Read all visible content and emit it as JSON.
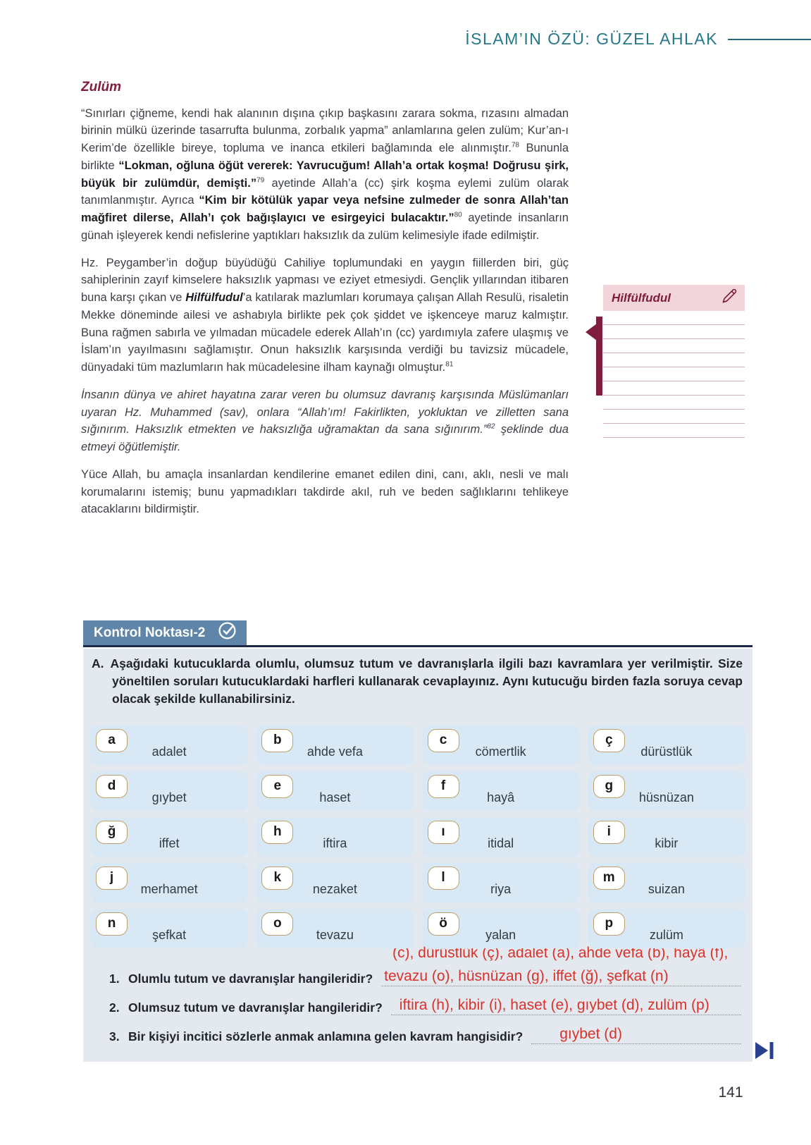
{
  "page": {
    "header_title": "İSLAM’IN ÖZÜ: GÜZEL AHLAK",
    "page_number": "141"
  },
  "colors": {
    "teal_accent": "#26778A",
    "maroon_accent": "#7E1D3D",
    "badge_blue": "#5F86A9",
    "panel_gray": "#E4E8EF",
    "cell_blue": "#D8E9F5",
    "letter_border_gold": "#BFA06A",
    "answer_red": "#DA322A",
    "navy_rule": "#1C2B49"
  },
  "article": {
    "section_title": "Zulüm",
    "paragraphs": [
      {
        "segments": [
          {
            "text": "“Sınırları çiğneme, kendi hak alanının dışına çıkıp başkasını zarara sokma, rızasını almadan birinin mülkü üzerinde tasarrufta bulunma, zorbalık yapma” anlamlarına gelen zulüm; Kur’an-ı Kerim’de özellikle bireye, topluma ve inanca etkileri bağlamında ele alınmıştır."
          },
          {
            "text": "78",
            "sup": true
          },
          {
            "text": " Bununla birlikte "
          },
          {
            "text": "“Lokman, oğluna öğüt vererek: Yavrucuğum! Allah’a ortak koşma! Doğrusu şirk, büyük bir zulümdür, demişti.”",
            "b": true
          },
          {
            "text": "79",
            "sup": true
          },
          {
            "text": " ayetinde Allah’a (cc) şirk koşma eylemi zulüm olarak tanımlanmıştır. Ayrıca "
          },
          {
            "text": "“Kim bir kötülük yapar veya nefsine zulmeder de sonra Allah’tan mağfiret dilerse, Allah’ı çok bağışlayıcı ve esirgeyici bulacaktır.”",
            "b": true
          },
          {
            "text": "80",
            "sup": true
          },
          {
            "text": " ayetinde insanların günah işleyerek kendi nefislerine yaptıkları haksızlık da zulüm kelimesiyle ifade edilmiştir."
          }
        ]
      },
      {
        "segments": [
          {
            "text": "Hz. Peygamber’in doğup büyüdüğü Cahiliye toplumundaki en yaygın fiillerden biri, güç sahiplerinin zayıf kimselere haksızlık yapması ve eziyet etmesiydi. Gençlik yıllarından itibaren buna karşı çıkan ve "
          },
          {
            "text": "Hilfülfudul",
            "b": true,
            "i": true
          },
          {
            "text": "’a katılarak mazlumları korumaya çalışan Allah Resulü, risaletin Mekke döneminde ailesi ve ashabıyla birlikte pek çok şiddet ve işkenceye maruz kalmıştır. Buna rağmen sabırla ve yılmadan mücadele ederek Allah’ın (cc) yardımıyla zafere ulaşmış ve İslam’ın yayılmasını sağlamıştır. Onun haksızlık karşısında verdiği bu tavizsiz mücadele, dünyadaki tüm mazlumların hak mücadelesine ilham kaynağı olmuştur."
          },
          {
            "text": "81",
            "sup": true
          }
        ]
      },
      {
        "segments": [
          {
            "text": "İnsanın dünya ve ahiret hayatına zarar veren bu olumsuz davranış karşısında Müslümanları uyaran Hz. Muhammed (sav), onlara “Allah’ım! Fakirlikten, yokluktan ve zilletten sana sığınırım. Haksızlık etmekten ve haksızlığa uğramaktan da sana sığınırım.”",
            "i": true
          },
          {
            "text": "82",
            "sup": true,
            "i": true
          },
          {
            "text": " şeklinde dua etmeyi öğütlemiştir.",
            "i": true
          }
        ]
      },
      {
        "segments": [
          {
            "text": "Yüce Allah, bu amaçla insanlardan kendilerine emanet edilen dini, canı, aklı, nesli ve malı korumalarını istemiş; bunu yapmadıkları takdirde akıl, ruh ve beden sağlıklarını tehlikeye atacaklarını bildirmiştir."
          }
        ]
      }
    ]
  },
  "note_box": {
    "title": "Hilfülfudul",
    "icon": "pencil-icon",
    "ruled_lines": 9
  },
  "control_point": {
    "badge_label": "Kontrol Noktası-2",
    "badge_icon": "check-circle-icon",
    "instruction_label": "A.",
    "instruction_text": "Aşağıdaki kutucuklarda olumlu, olumsuz tutum ve davranışlarla ilgili bazı kavramlara yer verilmiştir. Size yöneltilen soruları kutucuklardaki harfleri kullanarak cevaplayınız. Aynı kutucuğu birden fazla soruya cevap olacak şekilde kullanabilirsiniz.",
    "concepts": [
      {
        "letter": "a",
        "label": "adalet"
      },
      {
        "letter": "b",
        "label": "ahde vefa"
      },
      {
        "letter": "c",
        "label": "cömertlik"
      },
      {
        "letter": "ç",
        "label": "dürüstlük"
      },
      {
        "letter": "d",
        "label": "gıybet"
      },
      {
        "letter": "e",
        "label": "haset"
      },
      {
        "letter": "f",
        "label": "hayâ"
      },
      {
        "letter": "g",
        "label": "hüsnüzan"
      },
      {
        "letter": "ğ",
        "label": "iffet"
      },
      {
        "letter": "h",
        "label": "iftira"
      },
      {
        "letter": "ı",
        "label": "itidal"
      },
      {
        "letter": "i",
        "label": "kibir"
      },
      {
        "letter": "j",
        "label": "merhamet"
      },
      {
        "letter": "k",
        "label": "nezaket"
      },
      {
        "letter": "l",
        "label": "riya"
      },
      {
        "letter": "m",
        "label": "suizan"
      },
      {
        "letter": "n",
        "label": "şefkat"
      },
      {
        "letter": "o",
        "label": "tevazu"
      },
      {
        "letter": "ö",
        "label": "yalan"
      },
      {
        "letter": "p",
        "label": "zulüm"
      }
    ],
    "q1_answer_overflow": "(c), dürüstlük (ç), adalet (a), ahde vefa (b), hayâ (f),",
    "questions": [
      {
        "number": "1.",
        "text": "Olumlu tutum ve davranışlar hangileridir?",
        "answer": "tevazu (o), hüsnüzan (g), iffet (ğ), şefkat (n)"
      },
      {
        "number": "2.",
        "text": "Olumsuz tutum ve davranışlar hangileridir?",
        "answer": "iftira (h), kibir (i), haset (e), gıybet (d), zulüm (p)"
      },
      {
        "number": "3.",
        "text": "Bir kişiyi incitici sözlerle anmak anlamına gelen kavram hangisidir?",
        "answer": "gıybet (d)"
      }
    ]
  }
}
